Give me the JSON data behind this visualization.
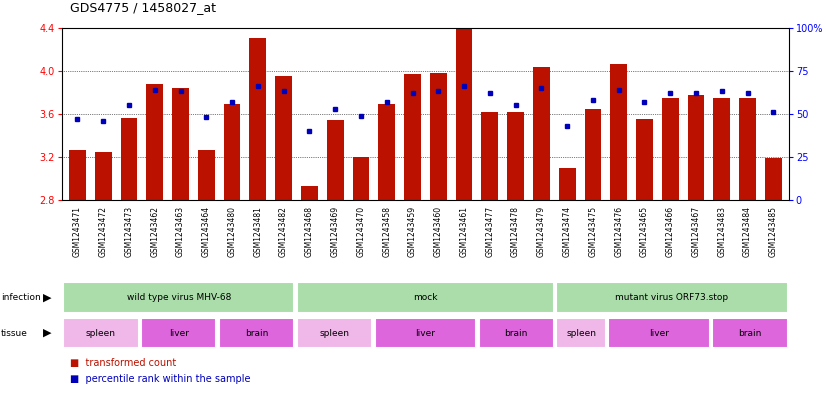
{
  "title": "GDS4775 / 1458027_at",
  "samples": [
    "GSM1243471",
    "GSM1243472",
    "GSM1243473",
    "GSM1243462",
    "GSM1243463",
    "GSM1243464",
    "GSM1243480",
    "GSM1243481",
    "GSM1243482",
    "GSM1243468",
    "GSM1243469",
    "GSM1243470",
    "GSM1243458",
    "GSM1243459",
    "GSM1243460",
    "GSM1243461",
    "GSM1243477",
    "GSM1243478",
    "GSM1243479",
    "GSM1243474",
    "GSM1243475",
    "GSM1243476",
    "GSM1243465",
    "GSM1243466",
    "GSM1243467",
    "GSM1243483",
    "GSM1243484",
    "GSM1243485"
  ],
  "red_values": [
    3.27,
    3.25,
    3.56,
    3.88,
    3.84,
    3.27,
    3.69,
    4.3,
    3.95,
    2.93,
    3.54,
    3.2,
    3.69,
    3.97,
    3.98,
    4.44,
    3.62,
    3.62,
    4.03,
    3.1,
    3.65,
    4.06,
    3.55,
    3.75,
    3.78,
    3.75,
    3.75,
    3.19
  ],
  "blue_percentiles": [
    47,
    46,
    55,
    64,
    63,
    48,
    57,
    66,
    63,
    40,
    53,
    49,
    57,
    62,
    63,
    66,
    62,
    55,
    65,
    43,
    58,
    64,
    57,
    62,
    62,
    63,
    62,
    51
  ],
  "y_min": 2.8,
  "y_max": 4.4,
  "yticks_left": [
    2.8,
    3.2,
    3.6,
    4.0,
    4.4
  ],
  "yticks_right": [
    0,
    25,
    50,
    75,
    100
  ],
  "bar_color": "#bb1100",
  "dot_color": "#0000bb",
  "infection_groups": [
    {
      "label": "wild type virus MHV-68",
      "start": 0,
      "end": 9
    },
    {
      "label": "mock",
      "start": 9,
      "end": 19
    },
    {
      "label": "mutant virus ORF73.stop",
      "start": 19,
      "end": 28
    }
  ],
  "tissue_groups": [
    {
      "label": "spleen",
      "start": 0,
      "end": 3,
      "color": "#f0b8e8"
    },
    {
      "label": "liver",
      "start": 3,
      "end": 6,
      "color": "#dd66dd"
    },
    {
      "label": "brain",
      "start": 6,
      "end": 9,
      "color": "#dd66dd"
    },
    {
      "label": "spleen",
      "start": 9,
      "end": 12,
      "color": "#f0b8e8"
    },
    {
      "label": "liver",
      "start": 12,
      "end": 16,
      "color": "#dd66dd"
    },
    {
      "label": "brain",
      "start": 16,
      "end": 19,
      "color": "#dd66dd"
    },
    {
      "label": "spleen",
      "start": 19,
      "end": 21,
      "color": "#f0b8e8"
    },
    {
      "label": "liver",
      "start": 21,
      "end": 25,
      "color": "#dd66dd"
    },
    {
      "label": "brain",
      "start": 25,
      "end": 28,
      "color": "#dd66dd"
    }
  ],
  "infection_color": "#aaddaa",
  "xtick_bg": "#dddddd",
  "legend_red": "transformed count",
  "legend_blue": "percentile rank within the sample"
}
